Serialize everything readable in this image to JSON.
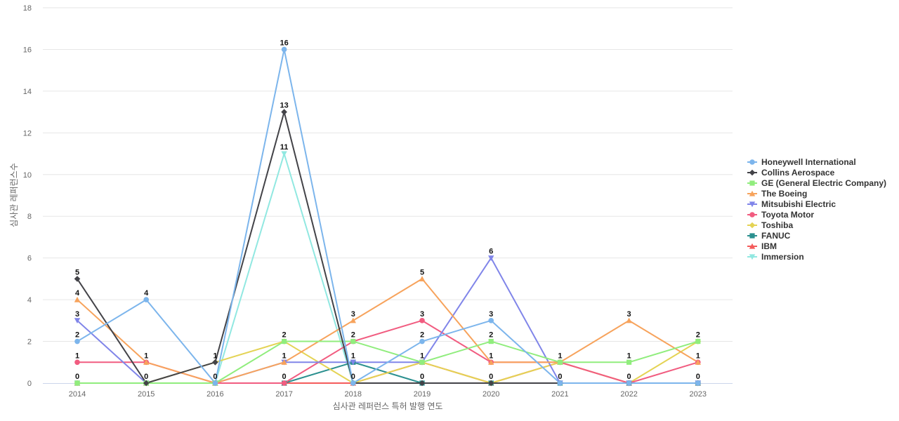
{
  "chart_data": {
    "type": "line",
    "title": "",
    "xlabel": "심사관 레퍼런스 특허 발행 연도",
    "ylabel": "심사관 레퍼런스수",
    "ylim": [
      0,
      18
    ],
    "yticks": [
      0,
      2,
      4,
      6,
      8,
      10,
      12,
      14,
      16,
      18
    ],
    "grid": true,
    "legend_position": "right",
    "x": [
      "2014",
      "2015",
      "2016",
      "2017",
      "2018",
      "2019",
      "2020",
      "2021",
      "2022",
      "2023"
    ],
    "series": [
      {
        "name": "Honeywell International",
        "color": "#7cb5ec",
        "marker": "circle",
        "values": [
          2,
          4,
          0,
          16,
          0,
          2,
          3,
          0,
          0,
          0
        ]
      },
      {
        "name": "Collins Aerospace",
        "color": "#434348",
        "marker": "diamond",
        "values": [
          5,
          0,
          1,
          13,
          0,
          0,
          0,
          0,
          0,
          0
        ]
      },
      {
        "name": "GE (General Electric Company)",
        "color": "#90ed7d",
        "marker": "square",
        "values": [
          0,
          0,
          0,
          2,
          2,
          1,
          2,
          1,
          1,
          2
        ]
      },
      {
        "name": "The Boeing",
        "color": "#f7a35c",
        "marker": "triangle",
        "values": [
          4,
          1,
          0,
          1,
          3,
          5,
          1,
          1,
          3,
          1
        ]
      },
      {
        "name": "Mitsubishi Electric",
        "color": "#8085e9",
        "marker": "triangle-down",
        "values": [
          3,
          0,
          0,
          1,
          1,
          1,
          6,
          0,
          0,
          0
        ]
      },
      {
        "name": "Toyota Motor",
        "color": "#f15c80",
        "marker": "circle",
        "values": [
          1,
          1,
          0,
          0,
          2,
          3,
          1,
          1,
          0,
          1
        ]
      },
      {
        "name": "Toshiba",
        "color": "#e4d354",
        "marker": "diamond",
        "values": [
          0,
          0,
          1,
          2,
          0,
          1,
          0,
          1,
          0,
          2
        ]
      },
      {
        "name": "FANUC",
        "color": "#2b908f",
        "marker": "square",
        "values": [
          0,
          0,
          0,
          0,
          1,
          0,
          0,
          0,
          0,
          0
        ]
      },
      {
        "name": "IBM",
        "color": "#f45b5b",
        "marker": "triangle",
        "values": [
          0,
          0,
          0,
          0,
          0,
          1,
          0,
          1,
          0,
          0
        ]
      },
      {
        "name": "Immersion",
        "color": "#91e8e1",
        "marker": "triangle-down",
        "values": [
          0,
          0,
          0,
          11,
          0,
          0,
          0,
          0,
          0,
          0
        ]
      }
    ],
    "data_labels": [
      {
        "x": "2014",
        "y": 5,
        "text": "5"
      },
      {
        "x": "2014",
        "y": 4,
        "text": "4"
      },
      {
        "x": "2014",
        "y": 3,
        "text": "3"
      },
      {
        "x": "2014",
        "y": 2,
        "text": "2"
      },
      {
        "x": "2014",
        "y": 1,
        "text": "1"
      },
      {
        "x": "2014",
        "y": 0,
        "text": "0"
      },
      {
        "x": "2015",
        "y": 4,
        "text": "4"
      },
      {
        "x": "2015",
        "y": 1,
        "text": "1"
      },
      {
        "x": "2015",
        "y": 0,
        "text": "0"
      },
      {
        "x": "2016",
        "y": 1,
        "text": "1"
      },
      {
        "x": "2016",
        "y": 0,
        "text": "0"
      },
      {
        "x": "2017",
        "y": 16,
        "text": "16"
      },
      {
        "x": "2017",
        "y": 13,
        "text": "13"
      },
      {
        "x": "2017",
        "y": 11,
        "text": "11"
      },
      {
        "x": "2017",
        "y": 2,
        "text": "2"
      },
      {
        "x": "2017",
        "y": 1,
        "text": "1"
      },
      {
        "x": "2017",
        "y": 0,
        "text": "0"
      },
      {
        "x": "2018",
        "y": 3,
        "text": "3"
      },
      {
        "x": "2018",
        "y": 2,
        "text": "2"
      },
      {
        "x": "2018",
        "y": 1,
        "text": "1"
      },
      {
        "x": "2018",
        "y": 0,
        "text": "0"
      },
      {
        "x": "2019",
        "y": 5,
        "text": "5"
      },
      {
        "x": "2019",
        "y": 3,
        "text": "3"
      },
      {
        "x": "2019",
        "y": 2,
        "text": "2"
      },
      {
        "x": "2019",
        "y": 1,
        "text": "1"
      },
      {
        "x": "2019",
        "y": 0,
        "text": "0"
      },
      {
        "x": "2020",
        "y": 6,
        "text": "6"
      },
      {
        "x": "2020",
        "y": 3,
        "text": "3"
      },
      {
        "x": "2020",
        "y": 2,
        "text": "2"
      },
      {
        "x": "2020",
        "y": 1,
        "text": "1"
      },
      {
        "x": "2020",
        "y": 0,
        "text": "0"
      },
      {
        "x": "2021",
        "y": 1,
        "text": "1"
      },
      {
        "x": "2021",
        "y": 0,
        "text": "0"
      },
      {
        "x": "2022",
        "y": 3,
        "text": "3"
      },
      {
        "x": "2022",
        "y": 1,
        "text": "1"
      },
      {
        "x": "2022",
        "y": 0,
        "text": "0"
      },
      {
        "x": "2023",
        "y": 2,
        "text": "2"
      },
      {
        "x": "2023",
        "y": 1,
        "text": "1"
      },
      {
        "x": "2023",
        "y": 0,
        "text": "0"
      }
    ]
  }
}
